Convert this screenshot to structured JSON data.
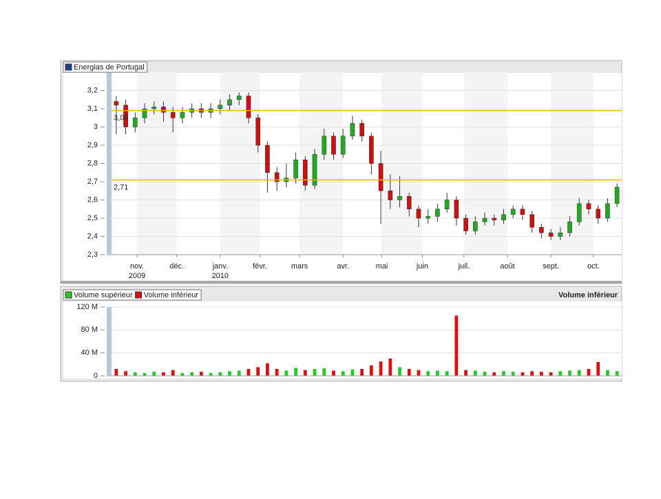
{
  "chart_data": [
    {
      "type": "candlestick",
      "series": [
        {
          "name": "Energias de Portugal",
          "color": "#1f3f8f",
          "open": [
            3.14,
            3.12,
            3.0,
            3.05,
            3.1,
            3.11,
            3.08,
            3.05,
            3.08,
            3.1,
            3.08,
            3.1,
            3.12,
            3.15,
            3.17,
            3.05,
            2.9,
            2.75,
            2.7,
            2.72,
            2.82,
            2.68,
            2.85,
            2.95,
            2.85,
            2.95,
            3.02,
            2.95,
            2.8,
            2.65,
            2.6,
            2.62,
            2.55,
            2.5,
            2.51,
            2.55,
            2.6,
            2.5,
            2.43,
            2.48,
            2.5,
            2.49,
            2.52,
            2.55,
            2.52,
            2.45,
            2.42,
            2.4,
            2.42,
            2.48,
            2.58,
            2.55,
            2.5,
            2.58
          ],
          "high": [
            3.17,
            3.15,
            3.08,
            3.13,
            3.14,
            3.14,
            3.11,
            3.11,
            3.13,
            3.13,
            3.13,
            3.15,
            3.18,
            3.19,
            3.19,
            3.07,
            2.92,
            2.78,
            2.8,
            2.86,
            2.84,
            2.88,
            2.99,
            2.97,
            2.99,
            3.06,
            3.04,
            2.97,
            2.87,
            2.74,
            2.73,
            2.64,
            2.57,
            2.55,
            2.58,
            2.64,
            2.62,
            2.52,
            2.51,
            2.53,
            2.52,
            2.55,
            2.57,
            2.57,
            2.54,
            2.47,
            2.44,
            2.45,
            2.51,
            2.61,
            2.6,
            2.57,
            2.61,
            2.69
          ],
          "low": [
            2.96,
            2.96,
            2.97,
            3.02,
            3.07,
            3.03,
            2.97,
            3.02,
            3.05,
            3.05,
            3.05,
            3.07,
            3.09,
            3.12,
            3.02,
            2.86,
            2.64,
            2.65,
            2.67,
            2.69,
            2.65,
            2.66,
            2.82,
            2.82,
            2.83,
            2.93,
            2.92,
            2.74,
            2.47,
            2.55,
            2.56,
            2.51,
            2.45,
            2.47,
            2.48,
            2.53,
            2.46,
            2.41,
            2.41,
            2.46,
            2.46,
            2.47,
            2.5,
            2.49,
            2.42,
            2.39,
            2.38,
            2.38,
            2.4,
            2.46,
            2.52,
            2.47,
            2.48,
            2.56
          ],
          "close": [
            3.12,
            3.0,
            3.05,
            3.1,
            3.11,
            3.08,
            3.05,
            3.08,
            3.1,
            3.08,
            3.1,
            3.12,
            3.15,
            3.17,
            3.05,
            2.9,
            2.75,
            2.7,
            2.72,
            2.82,
            2.68,
            2.85,
            2.95,
            2.85,
            2.95,
            3.02,
            2.95,
            2.8,
            2.65,
            2.6,
            2.62,
            2.55,
            2.5,
            2.51,
            2.55,
            2.6,
            2.5,
            2.43,
            2.48,
            2.5,
            2.49,
            2.52,
            2.55,
            2.52,
            2.45,
            2.42,
            2.4,
            2.42,
            2.48,
            2.58,
            2.55,
            2.5,
            2.58,
            2.67
          ]
        }
      ],
      "up_color": "#22aa22",
      "down_color": "#cc1111",
      "xlim": [
        -0.5,
        53.5
      ],
      "xticks": [
        {
          "value": 2.2,
          "label": "nov."
        },
        {
          "value": 6.4,
          "label": "déc."
        },
        {
          "value": 11,
          "label": "janv."
        },
        {
          "value": 15.2,
          "label": "févr."
        },
        {
          "value": 19.4,
          "label": "mars"
        },
        {
          "value": 24,
          "label": "avr."
        },
        {
          "value": 28.1,
          "label": "mai"
        },
        {
          "value": 32.4,
          "label": "juin"
        },
        {
          "value": 36.8,
          "label": "juil."
        },
        {
          "value": 41.4,
          "label": "août"
        },
        {
          "value": 46,
          "label": "sept."
        },
        {
          "value": 50.5,
          "label": "oct."
        }
      ],
      "xtick_years": [
        {
          "value": 2.2,
          "label": "2009"
        },
        {
          "value": 11,
          "label": "2010"
        }
      ],
      "ylim": [
        2.3,
        3.3
      ],
      "yticks": [
        {
          "value": 2.3,
          "label": "2,3"
        },
        {
          "value": 2.4,
          "label": "2,4"
        },
        {
          "value": 2.5,
          "label": "2,5"
        },
        {
          "value": 2.6,
          "label": "2,6"
        },
        {
          "value": 2.7,
          "label": "2,7"
        },
        {
          "value": 2.8,
          "label": "2,8"
        },
        {
          "value": 2.9,
          "label": "2,9"
        },
        3,
        {
          "value": 3.1,
          "label": "3,1"
        },
        {
          "value": 3.2,
          "label": "3,2"
        }
      ],
      "hlines": [
        {
          "value": 3.09,
          "label": "3,09"
        },
        {
          "value": 2.71,
          "label": "2,71"
        }
      ],
      "hline_color": "#f0b400",
      "grid": true
    },
    {
      "type": "bar",
      "status_label": "Volume inférieur",
      "series": [
        {
          "name": "Volume supérieur",
          "color": "#22cc22",
          "values": [
            null,
            null,
            6000000,
            5000000,
            7000000,
            null,
            null,
            5000000,
            6000000,
            null,
            5000000,
            6000000,
            8000000,
            9000000,
            null,
            null,
            null,
            null,
            9000000,
            14000000,
            null,
            12000000,
            13000000,
            null,
            8000000,
            11000000,
            null,
            null,
            null,
            null,
            15000000,
            null,
            null,
            8000000,
            9000000,
            8000000,
            null,
            null,
            9000000,
            7000000,
            null,
            8000000,
            7000000,
            null,
            null,
            null,
            null,
            8000000,
            9000000,
            10000000,
            null,
            null,
            10000000,
            8000000
          ]
        },
        {
          "name": "Volume inférieur",
          "color": "#dd1111",
          "values": [
            12000000,
            8000000,
            null,
            null,
            null,
            6000000,
            10000000,
            null,
            null,
            7000000,
            null,
            null,
            null,
            null,
            12000000,
            15000000,
            22000000,
            12000000,
            null,
            null,
            10000000,
            null,
            null,
            9000000,
            null,
            null,
            12000000,
            18000000,
            25000000,
            30000000,
            null,
            12000000,
            10000000,
            null,
            null,
            null,
            105000000,
            10000000,
            null,
            null,
            6000000,
            null,
            null,
            6000000,
            8000000,
            7000000,
            6000000,
            null,
            null,
            null,
            12000000,
            24000000,
            null,
            null
          ]
        }
      ],
      "xlim": [
        -0.5,
        53.5
      ],
      "ylim": [
        0,
        120000000
      ],
      "yticks": [
        0,
        {
          "value": 40000000,
          "label": "40 M"
        },
        {
          "value": 80000000,
          "label": "80 M"
        },
        {
          "value": 120000000,
          "label": "120 M"
        }
      ],
      "grid": true
    }
  ]
}
